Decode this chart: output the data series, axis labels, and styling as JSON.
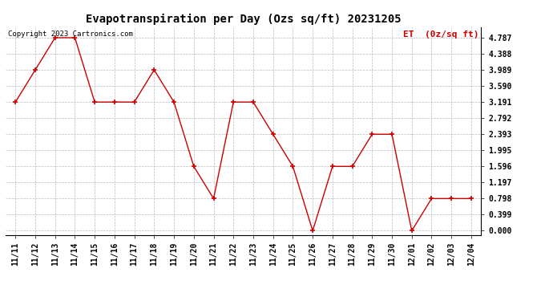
{
  "title": "Evapotranspiration per Day (Ozs sq/ft) 20231205",
  "copyright_text": "Copyright 2023 Cartronics.com",
  "legend_label": "ET  (0z/sq ft)",
  "x_labels": [
    "11/11",
    "11/12",
    "11/13",
    "11/14",
    "11/15",
    "11/16",
    "11/17",
    "11/18",
    "11/19",
    "11/20",
    "11/21",
    "11/22",
    "11/23",
    "11/24",
    "11/25",
    "11/26",
    "11/27",
    "11/28",
    "11/29",
    "11/30",
    "12/01",
    "12/02",
    "12/03",
    "12/04"
  ],
  "y_values": [
    3.191,
    3.989,
    4.787,
    4.787,
    3.191,
    3.191,
    3.191,
    3.989,
    3.191,
    1.596,
    0.798,
    3.191,
    3.191,
    2.393,
    1.596,
    0.0,
    1.596,
    1.596,
    2.393,
    2.393,
    0.0,
    0.798,
    0.798,
    0.798
  ],
  "y_ticks": [
    0.0,
    0.399,
    0.798,
    1.197,
    1.596,
    1.995,
    2.393,
    2.792,
    3.191,
    3.59,
    3.989,
    4.388,
    4.787
  ],
  "line_color": "#cc0000",
  "marker": "+",
  "marker_size": 5,
  "marker_edge_width": 1.2,
  "line_width": 1.0,
  "grid_color": "#bbbbbb",
  "grid_linestyle": "--",
  "bg_color": "#ffffff",
  "title_fontsize": 10,
  "tick_fontsize": 7,
  "legend_color": "#cc0000",
  "legend_fontsize": 8,
  "copyright_color": "#000000",
  "copyright_fontsize": 6.5,
  "ylim_min": -0.1,
  "ylim_max": 5.05
}
